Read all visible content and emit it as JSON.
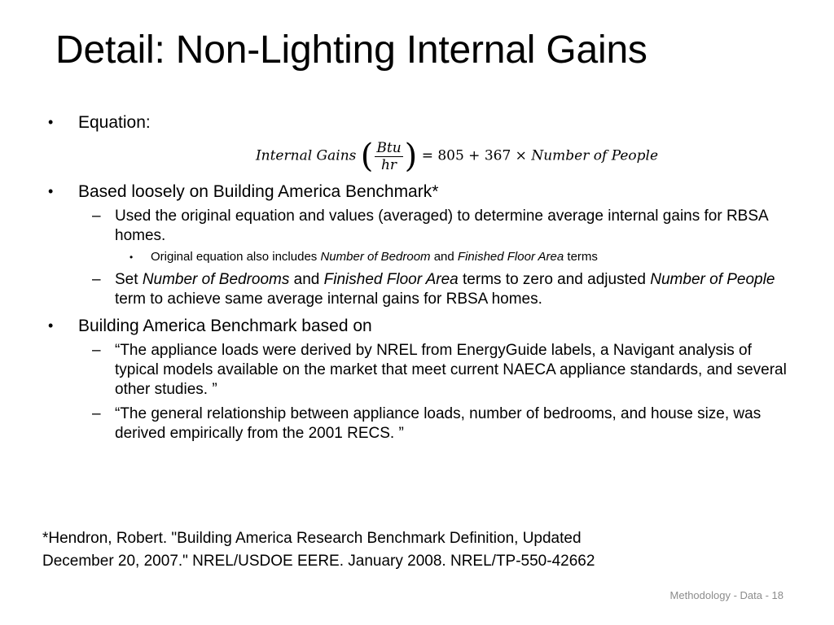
{
  "slide": {
    "title": "Detail: Non-Lighting Internal Gains",
    "footer": "Methodology - Data - 18"
  },
  "bullets": {
    "equation_label": "Equation:",
    "equation": {
      "lhs": "Internal Gains",
      "frac_num": "Btu",
      "frac_den": "hr",
      "rhs_prefix": "= 805 + 367 ×",
      "rhs_var": "Number of  People"
    },
    "benchmark": "Based loosely on Building America Benchmark*",
    "used_original": "Used the original equation and values (averaged) to determine average internal gains for RBSA homes.",
    "original_includes": {
      "pre": "Original equation also includes ",
      "em1": "Number of Bedroom",
      "mid": " and ",
      "em2": "Finished Floor Area",
      "post": " terms"
    },
    "set_terms": {
      "pre": "Set ",
      "em1": "Number of Bedrooms",
      "mid1": " and ",
      "em2": "Finished Floor Area",
      "mid2": " terms to zero and adjusted ",
      "em3": "Number of People",
      "post": " term to achieve same average internal gains for RBSA homes."
    },
    "based_on": "Building America Benchmark based on",
    "quote1": "“The appliance loads were derived by NREL from EnergyGuide labels, a Navigant analysis of typical models available on the market that meet current NAECA appliance standards, and several other studies. ”",
    "quote2": "“The general relationship between appliance loads, number of bedrooms, and house size, was derived empirically from the 2001 RECS. ”"
  },
  "footnote": {
    "line1": "*Hendron, Robert. \"Building America Research Benchmark Definition, Updated",
    "line2": "December 20, 2007.\"  NREL/USDOE EERE.  January 2008.  NREL/TP-550-42662"
  },
  "markers": {
    "bullet": "•",
    "dash": "–"
  }
}
